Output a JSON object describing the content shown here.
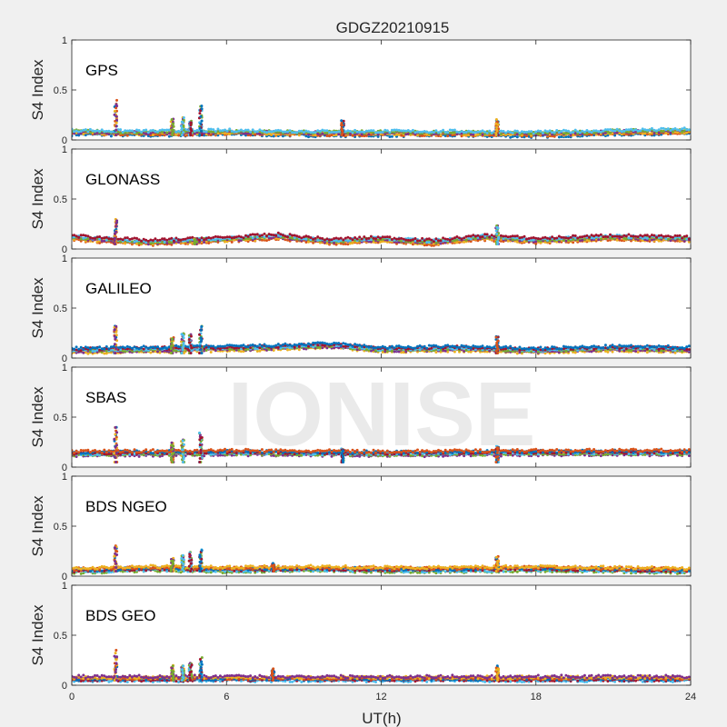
{
  "figure": {
    "title": "GDGZ20210915",
    "watermark": "IONISE",
    "xlabel": "UT(h)",
    "ylabel": "S4 Index",
    "xticks": [
      "0",
      "6",
      "12",
      "18",
      "24"
    ],
    "yticks": [
      "0",
      "0.5",
      "1"
    ]
  },
  "colors": {
    "figure_bg": "#f0f0f0",
    "axes_bg": "#ffffff",
    "axes_border": "#262626",
    "watermark": "#e6e6e6",
    "series_palette": [
      "#0072BD",
      "#D95319",
      "#EDB120",
      "#7E2F8E",
      "#77AC30",
      "#4DBEEE",
      "#A2142F"
    ]
  },
  "chart_data": [
    {
      "type": "scatter",
      "panel_label": "GPS",
      "xlim": [
        0,
        24
      ],
      "ylim": [
        0,
        1
      ],
      "xlabel": "",
      "ylabel": "S4 Index",
      "baseline": [
        {
          "x": 0,
          "y": 0.08
        },
        {
          "x": 3,
          "y": 0.07
        },
        {
          "x": 6,
          "y": 0.08
        },
        {
          "x": 9,
          "y": 0.07
        },
        {
          "x": 12,
          "y": 0.07
        },
        {
          "x": 15,
          "y": 0.07
        },
        {
          "x": 18,
          "y": 0.06
        },
        {
          "x": 21,
          "y": 0.08
        },
        {
          "x": 24,
          "y": 0.09
        }
      ],
      "spikes": [
        {
          "x": 1.7,
          "y": 0.41
        },
        {
          "x": 3.9,
          "y": 0.21
        },
        {
          "x": 4.3,
          "y": 0.24
        },
        {
          "x": 4.6,
          "y": 0.2
        },
        {
          "x": 5.0,
          "y": 0.36
        },
        {
          "x": 10.5,
          "y": 0.2
        },
        {
          "x": 16.5,
          "y": 0.21
        }
      ]
    },
    {
      "type": "scatter",
      "panel_label": "GLONASS",
      "xlim": [
        0,
        24
      ],
      "ylim": [
        0,
        1
      ],
      "xlabel": "",
      "ylabel": "S4 Index",
      "baseline": [
        {
          "x": 0,
          "y": 0.12
        },
        {
          "x": 1,
          "y": 0.1
        },
        {
          "x": 3,
          "y": 0.07
        },
        {
          "x": 6,
          "y": 0.1
        },
        {
          "x": 8,
          "y": 0.13
        },
        {
          "x": 10,
          "y": 0.08
        },
        {
          "x": 12,
          "y": 0.1
        },
        {
          "x": 14,
          "y": 0.07
        },
        {
          "x": 16,
          "y": 0.12
        },
        {
          "x": 18,
          "y": 0.09
        },
        {
          "x": 21,
          "y": 0.12
        },
        {
          "x": 24,
          "y": 0.1
        }
      ],
      "spikes": [
        {
          "x": 1.7,
          "y": 0.32
        },
        {
          "x": 4.8,
          "y": 0.1
        },
        {
          "x": 16.5,
          "y": 0.24
        }
      ]
    },
    {
      "type": "scatter",
      "panel_label": "GALILEO",
      "xlim": [
        0,
        24
      ],
      "ylim": [
        0,
        1
      ],
      "xlabel": "",
      "ylabel": "S4 Index",
      "baseline": [
        {
          "x": 0,
          "y": 0.08
        },
        {
          "x": 3,
          "y": 0.09
        },
        {
          "x": 6,
          "y": 0.1
        },
        {
          "x": 8,
          "y": 0.11
        },
        {
          "x": 10,
          "y": 0.13
        },
        {
          "x": 12,
          "y": 0.09
        },
        {
          "x": 15,
          "y": 0.1
        },
        {
          "x": 18,
          "y": 0.08
        },
        {
          "x": 21,
          "y": 0.1
        },
        {
          "x": 24,
          "y": 0.09
        }
      ],
      "spikes": [
        {
          "x": 1.7,
          "y": 0.38
        },
        {
          "x": 3.9,
          "y": 0.22
        },
        {
          "x": 4.3,
          "y": 0.28
        },
        {
          "x": 4.6,
          "y": 0.24
        },
        {
          "x": 5.0,
          "y": 0.33
        },
        {
          "x": 16.5,
          "y": 0.22
        }
      ]
    },
    {
      "type": "scatter",
      "panel_label": "SBAS",
      "xlim": [
        0,
        24
      ],
      "ylim": [
        0,
        1
      ],
      "xlabel": "",
      "ylabel": "S4 Index",
      "baseline": [
        {
          "x": 0,
          "y": 0.14
        },
        {
          "x": 6,
          "y": 0.15
        },
        {
          "x": 12,
          "y": 0.14
        },
        {
          "x": 18,
          "y": 0.15
        },
        {
          "x": 24,
          "y": 0.15
        }
      ],
      "spikes": [
        {
          "x": 1.7,
          "y": 0.4
        },
        {
          "x": 3.9,
          "y": 0.25
        },
        {
          "x": 4.3,
          "y": 0.28
        },
        {
          "x": 5.0,
          "y": 0.37
        },
        {
          "x": 10.5,
          "y": 0.2
        },
        {
          "x": 16.5,
          "y": 0.22
        }
      ]
    },
    {
      "type": "scatter",
      "panel_label": "BDS NGEO",
      "xlim": [
        0,
        24
      ],
      "ylim": [
        0,
        1
      ],
      "xlabel": "",
      "ylabel": "S4 Index",
      "baseline": [
        {
          "x": 0,
          "y": 0.06
        },
        {
          "x": 3,
          "y": 0.08
        },
        {
          "x": 6,
          "y": 0.07
        },
        {
          "x": 9,
          "y": 0.08
        },
        {
          "x": 12,
          "y": 0.07
        },
        {
          "x": 15,
          "y": 0.07
        },
        {
          "x": 18,
          "y": 0.08
        },
        {
          "x": 21,
          "y": 0.07
        },
        {
          "x": 24,
          "y": 0.06
        }
      ],
      "spikes": [
        {
          "x": 1.7,
          "y": 0.34
        },
        {
          "x": 3.9,
          "y": 0.18
        },
        {
          "x": 4.3,
          "y": 0.22
        },
        {
          "x": 4.6,
          "y": 0.24
        },
        {
          "x": 5.0,
          "y": 0.27
        },
        {
          "x": 7.8,
          "y": 0.13
        },
        {
          "x": 16.5,
          "y": 0.2
        }
      ]
    },
    {
      "type": "scatter",
      "panel_label": "BDS GEO",
      "xlim": [
        0,
        24
      ],
      "ylim": [
        0,
        1
      ],
      "xlabel": "UT(h)",
      "ylabel": "S4 Index",
      "baseline": [
        {
          "x": 0,
          "y": 0.07
        },
        {
          "x": 6,
          "y": 0.07
        },
        {
          "x": 12,
          "y": 0.07
        },
        {
          "x": 18,
          "y": 0.07
        },
        {
          "x": 24,
          "y": 0.07
        }
      ],
      "spikes": [
        {
          "x": 1.7,
          "y": 0.35
        },
        {
          "x": 3.9,
          "y": 0.2
        },
        {
          "x": 4.3,
          "y": 0.21
        },
        {
          "x": 4.6,
          "y": 0.24
        },
        {
          "x": 5.0,
          "y": 0.28
        },
        {
          "x": 7.8,
          "y": 0.17
        },
        {
          "x": 16.5,
          "y": 0.2
        }
      ]
    }
  ]
}
